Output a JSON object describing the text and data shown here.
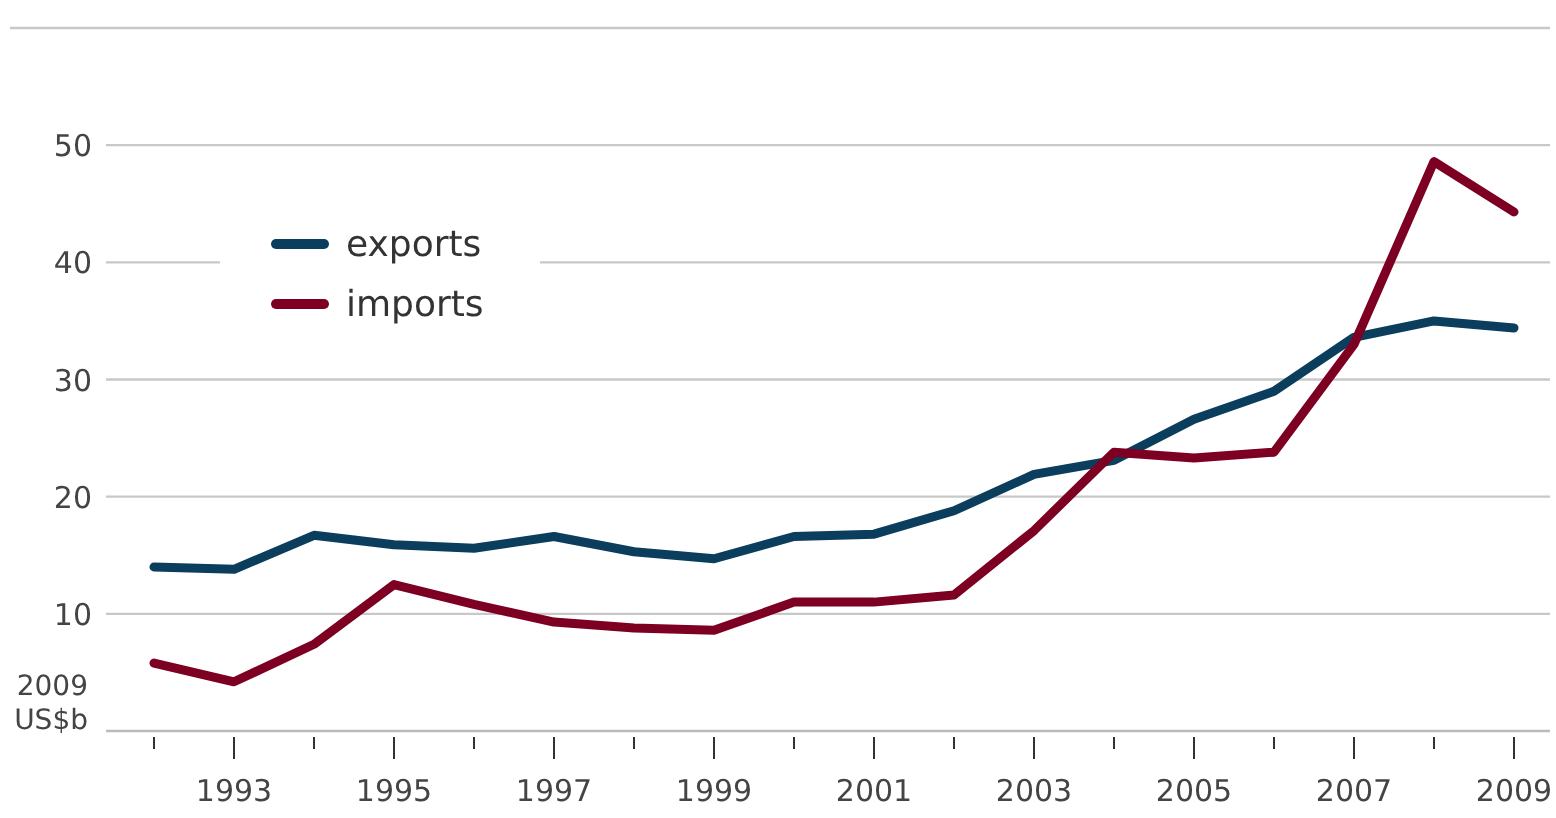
{
  "chart_data": {
    "type": "line",
    "ylabel": "2009\nUS$b",
    "x": [
      1992,
      1993,
      1994,
      1995,
      1996,
      1997,
      1998,
      1999,
      2000,
      2001,
      2002,
      2003,
      2004,
      2005,
      2006,
      2007,
      2008,
      2009
    ],
    "series": [
      {
        "name": "exports",
        "color": "#0b3d5c",
        "values": [
          14.0,
          13.8,
          16.7,
          15.9,
          15.6,
          16.6,
          15.3,
          14.7,
          16.6,
          16.8,
          18.8,
          21.9,
          23.1,
          26.6,
          29.0,
          33.6,
          35.0,
          34.4
        ]
      },
      {
        "name": "imports",
        "color": "#7d0022",
        "values": [
          5.8,
          4.2,
          7.4,
          12.5,
          10.8,
          9.3,
          8.8,
          8.6,
          11.0,
          11.0,
          11.6,
          17.1,
          23.8,
          23.3,
          23.8,
          33.0,
          48.6,
          44.3
        ]
      }
    ],
    "xlim": [
      1991.4,
      2009.45
    ],
    "xticks": [
      {
        "value": 1992,
        "label": null
      },
      1993,
      {
        "value": 1994,
        "label": null
      },
      1995,
      {
        "value": 1996,
        "label": null
      },
      1997,
      {
        "value": 1998,
        "label": null
      },
      1999,
      {
        "value": 2000,
        "label": null
      },
      2001,
      {
        "value": 2002,
        "label": null
      },
      2003,
      {
        "value": 2004,
        "label": null
      },
      2005,
      {
        "value": 2006,
        "label": null
      },
      2007,
      {
        "value": 2008,
        "label": null
      },
      2009
    ],
    "ylim": [
      0,
      60
    ],
    "yticks": [
      {
        "value": 0,
        "label": null
      },
      10,
      20,
      30,
      40,
      50,
      {
        "value": 60,
        "label": null
      }
    ],
    "grid": "y",
    "legend": "top left",
    "marker": "none",
    "line_style": "solid"
  }
}
